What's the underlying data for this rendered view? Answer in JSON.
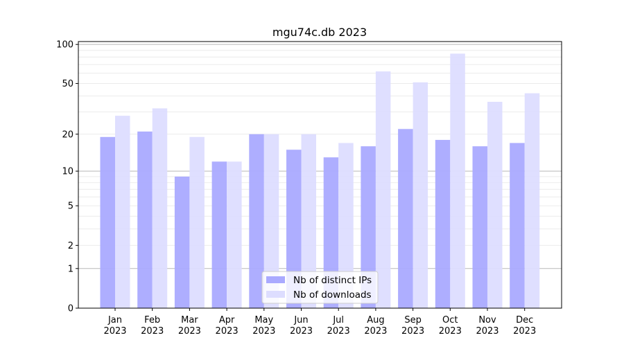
{
  "chart_data": {
    "type": "bar",
    "title": "mgu74c.db 2023",
    "xlabel": "",
    "ylabel": "",
    "yscale": "log(1+y)",
    "ylim": [
      0,
      105
    ],
    "yticks": [
      0,
      1,
      2,
      5,
      10,
      20,
      50,
      100
    ],
    "ytick_labels": [
      "0",
      "1",
      "2",
      "5",
      "10",
      "20",
      "50",
      "100"
    ],
    "categories": [
      "Jan\n2023",
      "Feb\n2023",
      "Mar\n2023",
      "Apr\n2023",
      "May\n2023",
      "Jun\n2023",
      "Jul\n2023",
      "Aug\n2023",
      "Sep\n2023",
      "Oct\n2023",
      "Nov\n2023",
      "Dec\n2023"
    ],
    "series": [
      {
        "name": "Nb of distinct IPs",
        "color": "#aaaaff",
        "values": [
          19,
          21,
          9,
          12,
          20,
          15,
          13,
          16,
          22,
          18,
          16,
          17
        ]
      },
      {
        "name": "Nb of downloads",
        "color": "#ddddff",
        "values": [
          28,
          32,
          19,
          12,
          20,
          20,
          17,
          62,
          51,
          85,
          36,
          42
        ]
      }
    ],
    "grid": true,
    "legend_position": "lower-center"
  }
}
